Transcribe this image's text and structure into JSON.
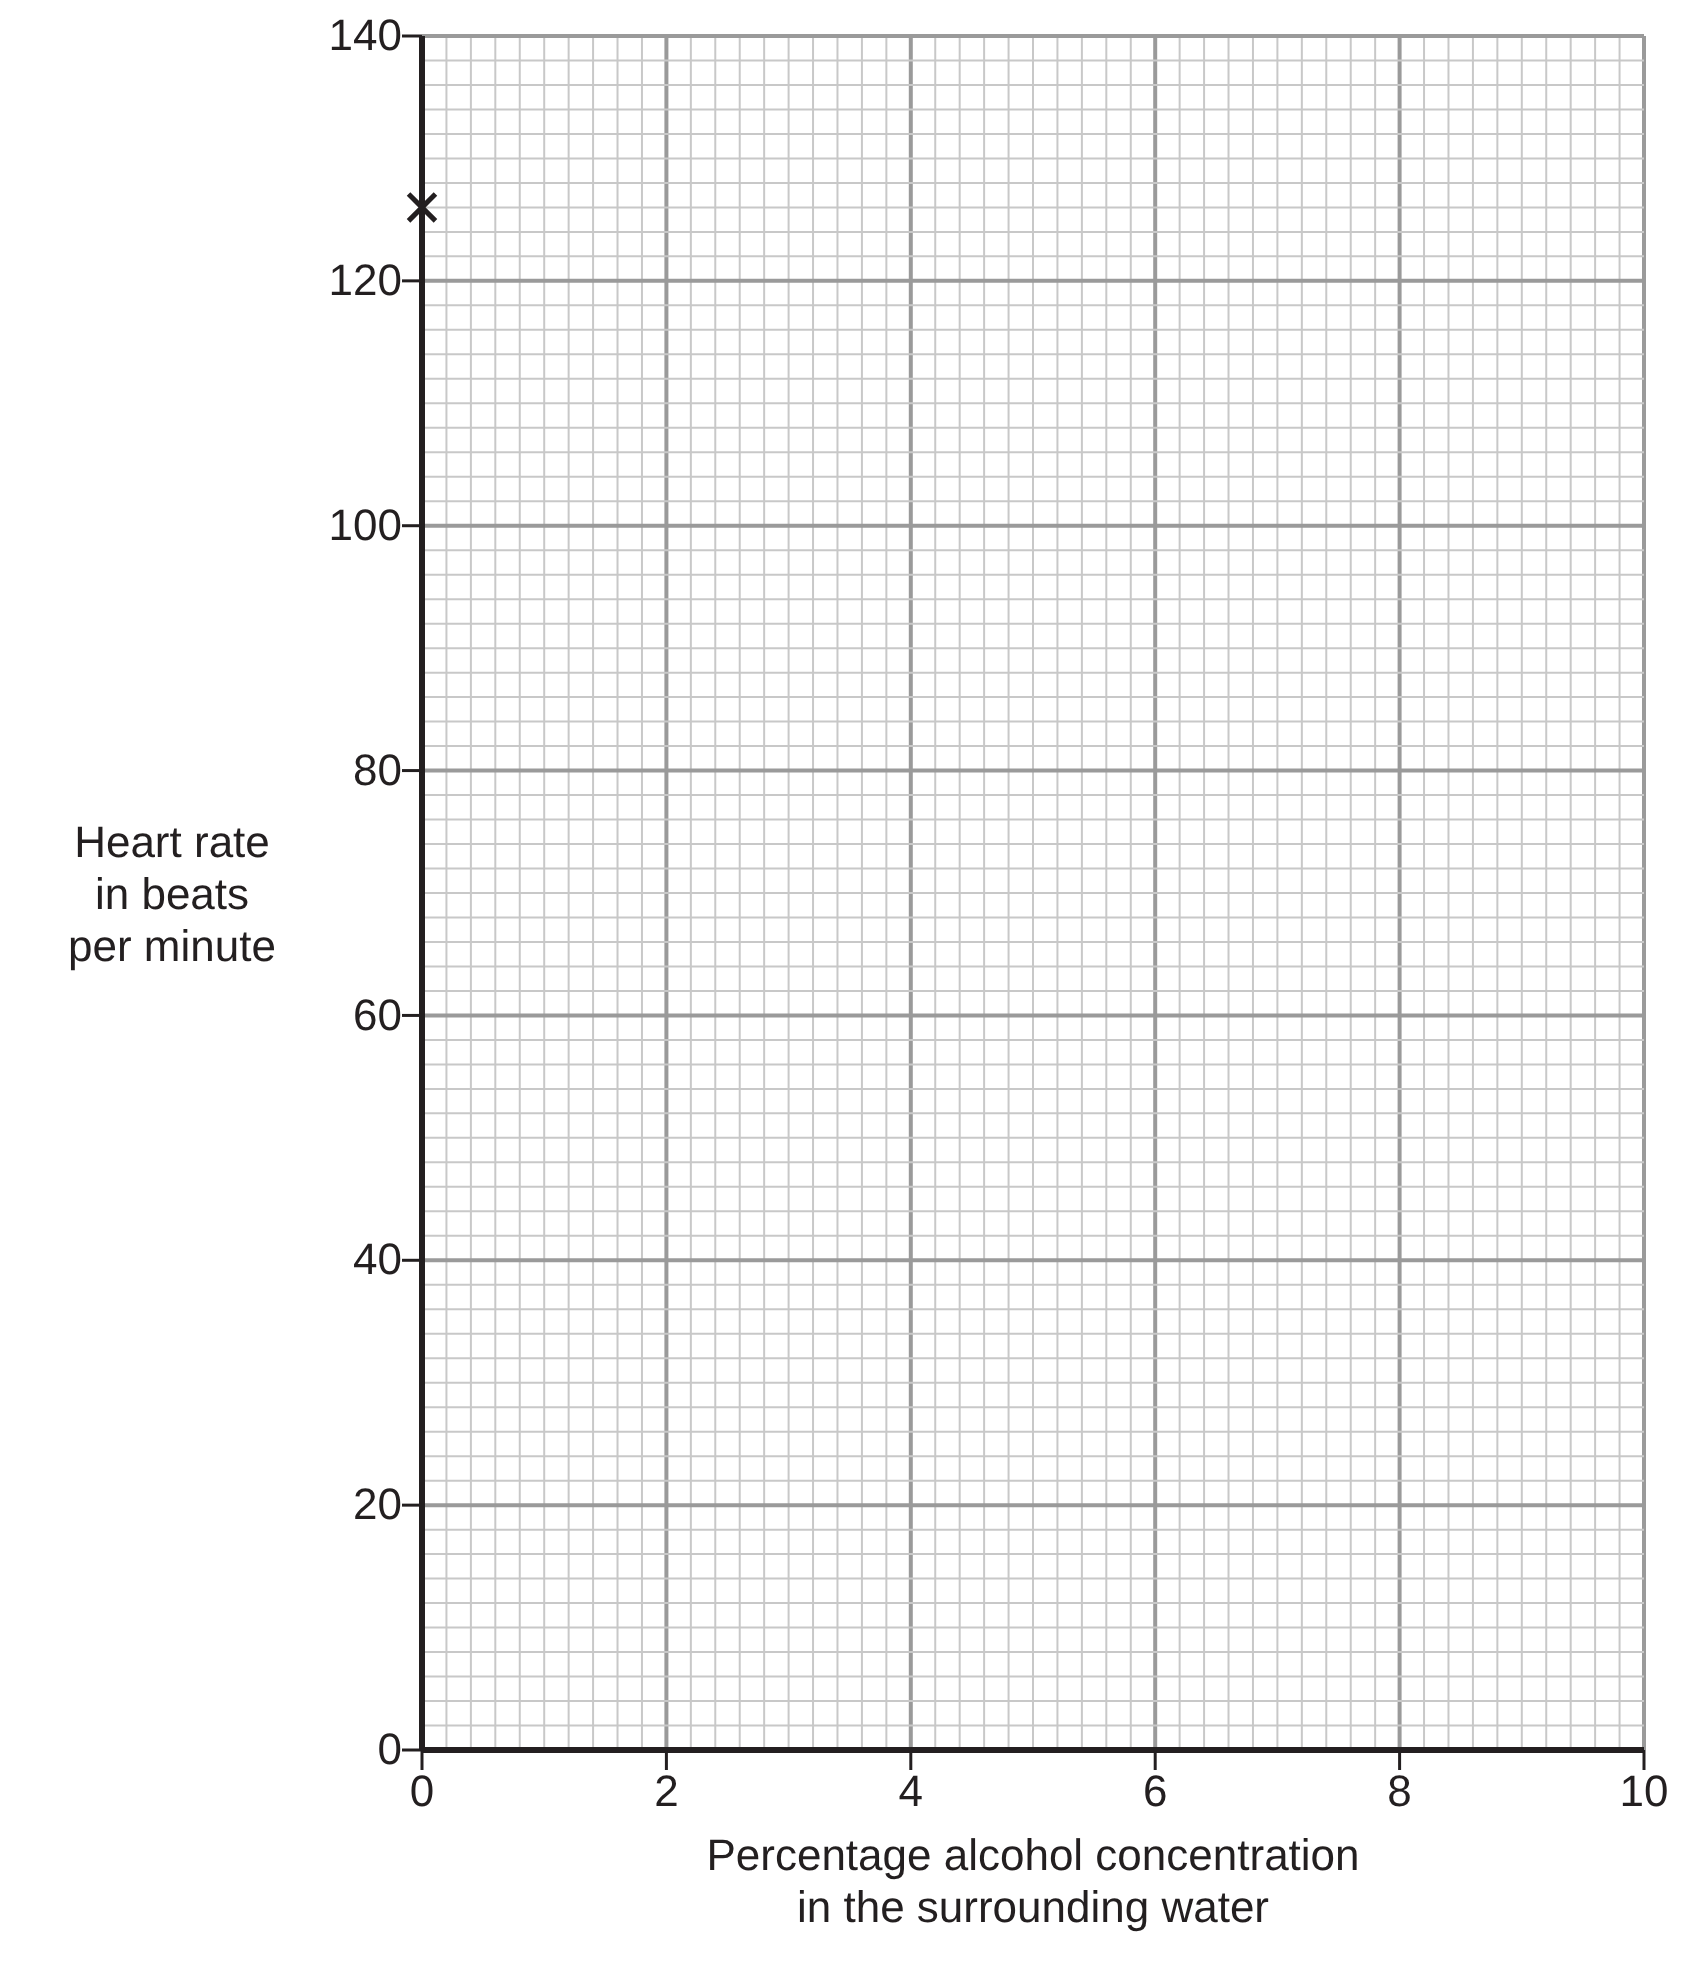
{
  "chart_data": {
    "type": "scatter",
    "xlabel": "Percentage alcohol concentration\nin the surrounding water",
    "ylabel": "Heart rate\nin beats\nper minute",
    "x": [
      0
    ],
    "values": [
      126
    ],
    "marker": "cross",
    "color": "#231f20",
    "grid": true,
    "xlim": [
      0,
      10
    ],
    "ylim": [
      0,
      140
    ],
    "xticks": [
      0,
      {
        "value": 0.2,
        "label": null
      },
      {
        "value": 0.4,
        "label": null
      },
      {
        "value": 0.6,
        "label": null
      },
      {
        "value": 0.8,
        "label": null
      },
      {
        "value": 1,
        "label": null
      },
      {
        "value": 1.2,
        "label": null
      },
      {
        "value": 1.4,
        "label": null
      },
      {
        "value": 1.6,
        "label": null
      },
      {
        "value": 1.8,
        "label": null
      },
      2,
      {
        "value": 2.2,
        "label": null
      },
      {
        "value": 2.4,
        "label": null
      },
      {
        "value": 2.6,
        "label": null
      },
      {
        "value": 2.8,
        "label": null
      },
      {
        "value": 3,
        "label": null
      },
      {
        "value": 3.2,
        "label": null
      },
      {
        "value": 3.4,
        "label": null
      },
      {
        "value": 3.6,
        "label": null
      },
      {
        "value": 3.8,
        "label": null
      },
      4,
      {
        "value": 4.2,
        "label": null
      },
      {
        "value": 4.4,
        "label": null
      },
      {
        "value": 4.6,
        "label": null
      },
      {
        "value": 4.8,
        "label": null
      },
      {
        "value": 5,
        "label": null
      },
      {
        "value": 5.2,
        "label": null
      },
      {
        "value": 5.4,
        "label": null
      },
      {
        "value": 5.6,
        "label": null
      },
      {
        "value": 5.8,
        "label": null
      },
      6,
      {
        "value": 6.2,
        "label": null
      },
      {
        "value": 6.4,
        "label": null
      },
      {
        "value": 6.6,
        "label": null
      },
      {
        "value": 6.8,
        "label": null
      },
      {
        "value": 7,
        "label": null
      },
      {
        "value": 7.2,
        "label": null
      },
      {
        "value": 7.4,
        "label": null
      },
      {
        "value": 7.6,
        "label": null
      },
      {
        "value": 7.8,
        "label": null
      },
      8,
      {
        "value": 8.2,
        "label": null
      },
      {
        "value": 8.4,
        "label": null
      },
      {
        "value": 8.6,
        "label": null
      },
      {
        "value": 8.8,
        "label": null
      },
      {
        "value": 9,
        "label": null
      },
      {
        "value": 9.2,
        "label": null
      },
      {
        "value": 9.4,
        "label": null
      },
      {
        "value": 9.6,
        "label": null
      },
      {
        "value": 9.8,
        "label": null
      },
      10
    ],
    "yticks": [
      0,
      {
        "value": 2,
        "label": null
      },
      {
        "value": 4,
        "label": null
      },
      {
        "value": 6,
        "label": null
      },
      {
        "value": 8,
        "label": null
      },
      {
        "value": 10,
        "label": null
      },
      {
        "value": 12,
        "label": null
      },
      {
        "value": 14,
        "label": null
      },
      {
        "value": 16,
        "label": null
      },
      {
        "value": 18,
        "label": null
      },
      20,
      {
        "value": 22,
        "label": null
      },
      {
        "value": 24,
        "label": null
      },
      {
        "value": 26,
        "label": null
      },
      {
        "value": 28,
        "label": null
      },
      {
        "value": 30,
        "label": null
      },
      {
        "value": 32,
        "label": null
      },
      {
        "value": 34,
        "label": null
      },
      {
        "value": 36,
        "label": null
      },
      {
        "value": 38,
        "label": null
      },
      40,
      {
        "value": 42,
        "label": null
      },
      {
        "value": 44,
        "label": null
      },
      {
        "value": 46,
        "label": null
      },
      {
        "value": 48,
        "label": null
      },
      {
        "value": 50,
        "label": null
      },
      {
        "value": 52,
        "label": null
      },
      {
        "value": 54,
        "label": null
      },
      {
        "value": 56,
        "label": null
      },
      {
        "value": 58,
        "label": null
      },
      60,
      {
        "value": 62,
        "label": null
      },
      {
        "value": 64,
        "label": null
      },
      {
        "value": 66,
        "label": null
      },
      {
        "value": 68,
        "label": null
      },
      {
        "value": 70,
        "label": null
      },
      {
        "value": 72,
        "label": null
      },
      {
        "value": 74,
        "label": null
      },
      {
        "value": 76,
        "label": null
      },
      {
        "value": 78,
        "label": null
      },
      80,
      {
        "value": 82,
        "label": null
      },
      {
        "value": 84,
        "label": null
      },
      {
        "value": 86,
        "label": null
      },
      {
        "value": 88,
        "label": null
      },
      {
        "value": 90,
        "label": null
      },
      {
        "value": 92,
        "label": null
      },
      {
        "value": 94,
        "label": null
      },
      {
        "value": 96,
        "label": null
      },
      {
        "value": 98,
        "label": null
      },
      100,
      {
        "value": 102,
        "label": null
      },
      {
        "value": 104,
        "label": null
      },
      {
        "value": 106,
        "label": null
      },
      {
        "value": 108,
        "label": null
      },
      {
        "value": 110,
        "label": null
      },
      {
        "value": 112,
        "label": null
      },
      {
        "value": 114,
        "label": null
      },
      {
        "value": 116,
        "label": null
      },
      {
        "value": 118,
        "label": null
      },
      120,
      {
        "value": 122,
        "label": null
      },
      {
        "value": 124,
        "label": null
      },
      {
        "value": 126,
        "label": null
      },
      {
        "value": 128,
        "label": null
      },
      {
        "value": 130,
        "label": null
      },
      {
        "value": 132,
        "label": null
      },
      {
        "value": 134,
        "label": null
      },
      {
        "value": 136,
        "label": null
      },
      {
        "value": 138,
        "label": null
      },
      140
    ]
  }
}
